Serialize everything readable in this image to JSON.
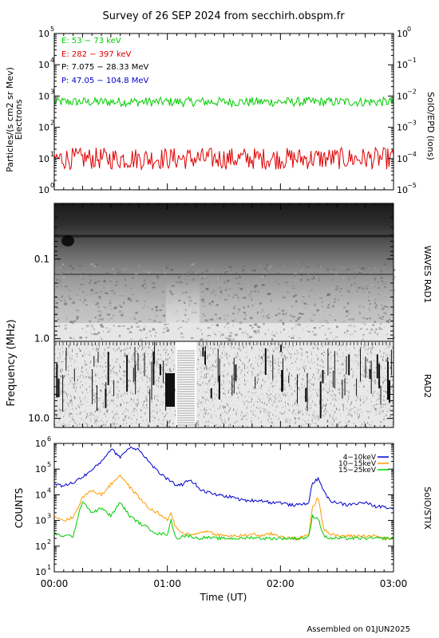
{
  "title": "Survey of 26 SEP 2024 from secchirh.obspm.fr",
  "footer": "Assembled on 01JUN2025",
  "chart_data": [
    {
      "type": "line",
      "panel": "SoIO/EPD",
      "ylabel_left": "Particles/(s cm2 sr Mev)",
      "ylabel_left2": "Electrons",
      "ylabel_right": "SolO/EPD (ions)",
      "yscale": "log",
      "ylim_left": [
        1,
        100000
      ],
      "ylim_right": [
        1e-05,
        1
      ],
      "left_ticks": [
        {
          "base": "10",
          "exp": "0"
        },
        {
          "base": "10",
          "exp": "1"
        },
        {
          "base": "10",
          "exp": "2"
        },
        {
          "base": "10",
          "exp": "3"
        },
        {
          "base": "10",
          "exp": "4"
        },
        {
          "base": "10",
          "exp": "5"
        }
      ],
      "right_ticks": [
        {
          "base": "10",
          "exp": "−5"
        },
        {
          "base": "10",
          "exp": "−4"
        },
        {
          "base": "10",
          "exp": "−3"
        },
        {
          "base": "10",
          "exp": "−2"
        },
        {
          "base": "10",
          "exp": "−1"
        },
        {
          "base": "10",
          "exp": "0"
        }
      ],
      "legend": [
        {
          "label": "E: 53 − 73 keV",
          "color": "#00cc00"
        },
        {
          "label": "E: 282 − 397 keV",
          "color": "#dd0000"
        },
        {
          "label": "P: 7.075 − 28.33 MeV",
          "color": "#000000"
        },
        {
          "label": "P: 47.05 − 104.8 MeV",
          "color": "#0000cc"
        }
      ],
      "series": [
        {
          "name": "E: 53 − 73 keV",
          "color": "#00cc00",
          "baseline": 650,
          "noise_decades": 0.15,
          "note_values": "noisy around 600-700"
        },
        {
          "name": "E: 282 − 397 keV",
          "color": "#dd0000",
          "baseline": 10,
          "noise_decades": 0.35,
          "note_values": "noisy between 5 and 40"
        }
      ]
    },
    {
      "type": "heatmap",
      "panel": "WAVES RAD1 / RAD2",
      "ylabel_left": "Frequency (MHz)",
      "label_rad1": "WAVES RAD1",
      "label_rad2": "RAD2",
      "yscale": "log",
      "ylim": [
        0.02,
        13
      ],
      "y_ticks": [
        "0.1",
        "1.0",
        "10.0"
      ],
      "y_tick_values": [
        0.1,
        1.0,
        10.0
      ]
    },
    {
      "type": "line",
      "panel": "SolO/STIX",
      "ylabel_left": "COUNTS",
      "ylabel_right": "SolO/STIX",
      "yscale": "log",
      "ylim": [
        10,
        1000000
      ],
      "y_ticks": [
        {
          "base": "10",
          "exp": "1"
        },
        {
          "base": "10",
          "exp": "2"
        },
        {
          "base": "10",
          "exp": "3"
        },
        {
          "base": "10",
          "exp": "4"
        },
        {
          "base": "10",
          "exp": "5"
        },
        {
          "base": "10",
          "exp": "6"
        }
      ],
      "xlabel": "Time (UT)",
      "x_ticks": [
        "00:00",
        "01:00",
        "02:00",
        "03:00"
      ],
      "xlim_minutes": [
        0,
        180
      ],
      "legend": [
        {
          "label": "4−10keV",
          "color": "#0000cc"
        },
        {
          "label": "10−15keV",
          "color": "#ff9900"
        },
        {
          "label": "15−25keV",
          "color": "#00cc00"
        }
      ],
      "series": [
        {
          "name": "4−10keV",
          "color": "#0000cc",
          "x": [
            0,
            5,
            10,
            15,
            20,
            25,
            30,
            35,
            40,
            45,
            50,
            55,
            60,
            64,
            68,
            72,
            75,
            78,
            82,
            86,
            90,
            95,
            100,
            105,
            110,
            115,
            120,
            125,
            130,
            135,
            137,
            140,
            143,
            146,
            150,
            155,
            160,
            165,
            170,
            175,
            180
          ],
          "y": [
            25000,
            22000,
            30000,
            50000,
            90000,
            200000,
            600000,
            300000,
            700000,
            600000,
            200000,
            80000,
            40000,
            25000,
            25000,
            40000,
            25000,
            15000,
            12000,
            10000,
            9000,
            8000,
            6000,
            6000,
            6000,
            5000,
            5000,
            4000,
            4000,
            5000,
            30000,
            40000,
            15000,
            6000,
            5000,
            4000,
            4500,
            5000,
            3500,
            3500,
            3000
          ]
        },
        {
          "name": "10−15keV",
          "color": "#ff9900",
          "x": [
            0,
            5,
            10,
            15,
            20,
            25,
            30,
            35,
            40,
            45,
            50,
            55,
            60,
            62,
            64,
            66,
            68,
            72,
            76,
            80,
            85,
            90,
            95,
            100,
            105,
            110,
            115,
            120,
            125,
            130,
            135,
            137,
            140,
            143,
            146,
            150,
            155,
            160,
            165,
            170,
            175,
            180
          ],
          "y": [
            1500,
            1000,
            1300,
            8000,
            15000,
            10000,
            25000,
            60000,
            20000,
            8000,
            3000,
            2000,
            1000,
            2000,
            600,
            400,
            300,
            300,
            300,
            400,
            300,
            250,
            250,
            250,
            300,
            250,
            300,
            250,
            200,
            200,
            300,
            3000,
            8000,
            500,
            300,
            250,
            250,
            250,
            250,
            250,
            200,
            200
          ]
        },
        {
          "name": "15−25keV",
          "color": "#00cc00",
          "x": [
            0,
            5,
            10,
            15,
            20,
            25,
            30,
            35,
            40,
            45,
            50,
            55,
            60,
            62,
            64,
            66,
            68,
            72,
            76,
            80,
            85,
            90,
            95,
            100,
            105,
            110,
            115,
            120,
            125,
            130,
            135,
            137,
            140,
            143,
            146,
            150,
            155,
            160,
            165,
            170,
            175,
            180
          ],
          "y": [
            300,
            250,
            250,
            6000,
            2000,
            3000,
            1500,
            5000,
            1500,
            800,
            500,
            300,
            300,
            1000,
            250,
            200,
            250,
            250,
            200,
            220,
            200,
            200,
            200,
            200,
            220,
            200,
            200,
            200,
            200,
            200,
            220,
            1500,
            1200,
            250,
            200,
            200,
            200,
            200,
            200,
            200,
            200,
            200
          ]
        }
      ]
    }
  ]
}
